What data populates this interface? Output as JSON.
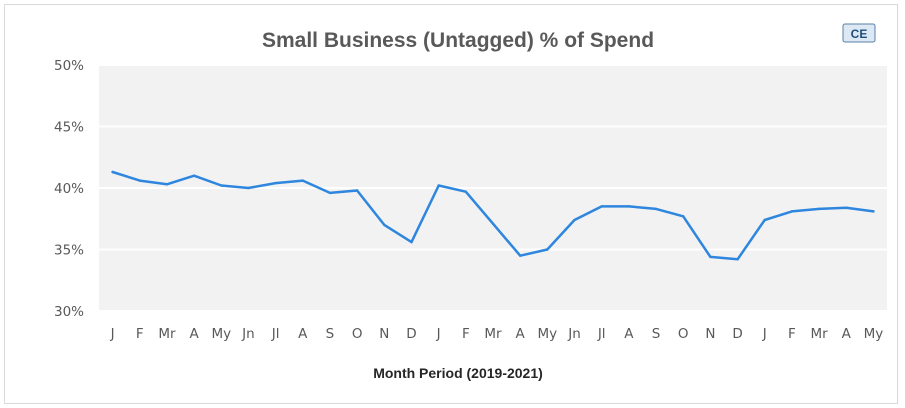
{
  "chart_data": {
    "type": "line",
    "title": "Small Business (Untagged) % of Spend",
    "xlabel": "Month Period (2019-2021)",
    "ylabel": "",
    "ylim": [
      30,
      50
    ],
    "ytick_labels": [
      "30%",
      "35%",
      "40%",
      "45%",
      "50%"
    ],
    "yticks": [
      30,
      35,
      40,
      45,
      50
    ],
    "categories": [
      "J",
      "F",
      "Mr",
      "A",
      "My",
      "Jn",
      "Jl",
      "A",
      "S",
      "O",
      "N",
      "D",
      "J",
      "F",
      "Mr",
      "A",
      "My",
      "Jn",
      "Jl",
      "A",
      "S",
      "O",
      "N",
      "D",
      "J",
      "F",
      "Mr",
      "A",
      "My"
    ],
    "series": [
      {
        "name": "",
        "color": "#2e86de",
        "values": [
          41.3,
          40.6,
          40.3,
          41.0,
          40.2,
          40.0,
          40.4,
          40.6,
          39.6,
          39.8,
          37.0,
          35.6,
          40.2,
          39.7,
          37.1,
          34.5,
          35.0,
          37.4,
          38.5,
          38.5,
          38.3,
          37.7,
          34.4,
          34.2,
          37.4,
          38.1,
          38.3,
          38.4,
          38.1
        ]
      }
    ],
    "grid": true,
    "legend": "none"
  },
  "badge": {
    "label": "CE"
  },
  "colors": {
    "plot_background": "#f2f2f2",
    "gridline": "#ffffff",
    "line": "#2e86de",
    "badge_fill": "#dce9f5",
    "badge_border": "#5b7fa6"
  }
}
